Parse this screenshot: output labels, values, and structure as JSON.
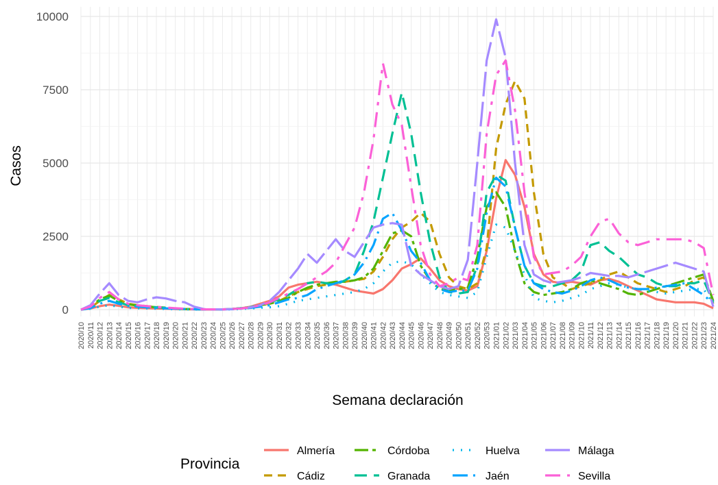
{
  "chart_data": {
    "type": "line",
    "xlabel": "Semana declaración",
    "ylabel": "Casos",
    "ylim": [
      0,
      10000
    ],
    "yticks": [
      0,
      2500,
      5000,
      7500,
      10000
    ],
    "grid": true,
    "legend": {
      "title": "Provincia",
      "position": "bottom"
    },
    "x": [
      "2020/10",
      "2020/11",
      "2020/12",
      "2020/13",
      "2020/14",
      "2020/15",
      "2020/16",
      "2020/17",
      "2020/18",
      "2020/19",
      "2020/20",
      "2020/21",
      "2020/22",
      "2020/23",
      "2020/24",
      "2020/25",
      "2020/26",
      "2020/27",
      "2020/28",
      "2020/29",
      "2020/30",
      "2020/31",
      "2020/32",
      "2020/33",
      "2020/34",
      "2020/35",
      "2020/36",
      "2020/37",
      "2020/38",
      "2020/39",
      "2020/40",
      "2020/41",
      "2020/42",
      "2020/43",
      "2020/44",
      "2020/45",
      "2020/46",
      "2020/47",
      "2020/48",
      "2020/49",
      "2020/50",
      "2020/51",
      "2020/52",
      "2020/53",
      "2021/01",
      "2021/02",
      "2021/03",
      "2021/04",
      "2021/05",
      "2021/06",
      "2021/07",
      "2021/08",
      "2021/09",
      "2021/10",
      "2021/11",
      "2021/12",
      "2021/13",
      "2021/14",
      "2021/15",
      "2021/16",
      "2021/17",
      "2021/18",
      "2021/19",
      "2021/20",
      "2021/21",
      "2021/22",
      "2021/23",
      "2021/24"
    ],
    "series": [
      {
        "name": "Almería",
        "color": "#F8766D",
        "dash": "",
        "values": [
          0,
          40,
          120,
          170,
          130,
          80,
          60,
          50,
          40,
          30,
          20,
          15,
          10,
          10,
          10,
          10,
          20,
          50,
          100,
          200,
          300,
          450,
          750,
          850,
          900,
          950,
          900,
          850,
          750,
          650,
          600,
          550,
          700,
          1000,
          1400,
          1550,
          1750,
          1400,
          1000,
          800,
          700,
          650,
          800,
          2000,
          3800,
          5100,
          4600,
          3500,
          1900,
          1200,
          950,
          900,
          950,
          900,
          850,
          1000,
          1050,
          950,
          800,
          650,
          500,
          350,
          300,
          250,
          250,
          250,
          200,
          50
        ]
      },
      {
        "name": "Cádiz",
        "color": "#C49A00",
        "dash": "12,8",
        "values": [
          0,
          60,
          300,
          500,
          350,
          200,
          150,
          120,
          90,
          70,
          40,
          20,
          15,
          10,
          10,
          10,
          20,
          40,
          80,
          150,
          200,
          300,
          450,
          600,
          700,
          800,
          850,
          900,
          950,
          1000,
          1050,
          1300,
          1800,
          2400,
          2800,
          3000,
          3300,
          3000,
          1900,
          1100,
          800,
          700,
          900,
          2100,
          5500,
          7000,
          7800,
          7200,
          4000,
          1900,
          1100,
          900,
          700,
          800,
          900,
          1000,
          1200,
          1300,
          1100,
          900,
          800,
          700,
          600,
          700,
          800,
          1000,
          1100,
          200
        ]
      },
      {
        "name": "Córdoba",
        "color": "#53B400",
        "dash": "20,6,5,6",
        "values": [
          0,
          100,
          350,
          480,
          300,
          180,
          140,
          110,
          80,
          60,
          40,
          20,
          15,
          10,
          10,
          10,
          20,
          50,
          90,
          150,
          200,
          280,
          400,
          600,
          750,
          850,
          900,
          950,
          950,
          1000,
          1100,
          1400,
          2000,
          2600,
          2700,
          2500,
          1500,
          1000,
          700,
          650,
          700,
          750,
          1800,
          3500,
          4000,
          3500,
          2000,
          900,
          600,
          500,
          550,
          600,
          700,
          900,
          1000,
          900,
          800,
          700,
          550,
          500,
          600,
          700,
          800,
          900,
          1000,
          1100,
          1200,
          300
        ]
      },
      {
        "name": "Granada",
        "color": "#00C094",
        "dash": "18,10",
        "values": [
          0,
          80,
          300,
          400,
          250,
          150,
          120,
          100,
          80,
          60,
          40,
          20,
          15,
          10,
          10,
          10,
          20,
          50,
          90,
          150,
          250,
          350,
          500,
          700,
          900,
          950,
          900,
          850,
          1000,
          1200,
          2000,
          3000,
          4500,
          6000,
          7400,
          6000,
          4000,
          2300,
          1100,
          600,
          550,
          600,
          1500,
          4000,
          4600,
          4400,
          2800,
          1500,
          900,
          800,
          800,
          900,
          1000,
          1300,
          2200,
          2300,
          2000,
          1800,
          1500,
          1200,
          1100,
          900,
          800,
          800,
          900,
          900,
          1000,
          250
        ]
      },
      {
        "name": "Huelva",
        "color": "#00B6EB",
        "dash": "2,10",
        "values": [
          0,
          30,
          100,
          150,
          100,
          60,
          50,
          40,
          30,
          20,
          15,
          10,
          8,
          5,
          5,
          5,
          10,
          20,
          40,
          60,
          80,
          120,
          200,
          300,
          350,
          400,
          450,
          500,
          550,
          600,
          700,
          900,
          1300,
          1600,
          1650,
          1550,
          1200,
          900,
          600,
          500,
          450,
          400,
          600,
          1800,
          2900,
          2800,
          2000,
          1200,
          400,
          300,
          250,
          300,
          400,
          500,
          700,
          800,
          900,
          850,
          750,
          700,
          650,
          600,
          550,
          600,
          650,
          700,
          700,
          200
        ]
      },
      {
        "name": "Jaén",
        "color": "#06A4FF",
        "dash": "22,8,3,8",
        "values": [
          0,
          50,
          200,
          300,
          200,
          120,
          100,
          80,
          60,
          45,
          30,
          20,
          15,
          10,
          10,
          10,
          15,
          30,
          60,
          100,
          150,
          250,
          350,
          400,
          500,
          700,
          800,
          900,
          1000,
          1200,
          1600,
          2200,
          3100,
          3300,
          2700,
          2000,
          1600,
          1000,
          700,
          600,
          650,
          650,
          1400,
          3300,
          4500,
          4200,
          2800,
          1500,
          900,
          700,
          600,
          550,
          650,
          800,
          1000,
          1100,
          1000,
          850,
          750,
          700,
          700,
          750,
          800,
          850,
          900,
          700,
          500,
          200
        ]
      },
      {
        "name": "Málaga",
        "color": "#A58AFF",
        "dash": "36,8",
        "values": [
          0,
          150,
          550,
          900,
          500,
          300,
          250,
          350,
          420,
          380,
          300,
          250,
          100,
          20,
          10,
          10,
          20,
          40,
          80,
          150,
          300,
          600,
          1000,
          1400,
          1900,
          1600,
          2000,
          2400,
          2000,
          1800,
          2300,
          2800,
          2900,
          2950,
          2900,
          1500,
          1200,
          1000,
          800,
          700,
          800,
          1700,
          5000,
          8500,
          9900,
          8600,
          5000,
          2200,
          1200,
          1000,
          900,
          950,
          1000,
          1100,
          1250,
          1200,
          1150,
          1150,
          1100,
          1200,
          1300,
          1400,
          1500,
          1600,
          1500,
          1400,
          1300,
          100
        ]
      },
      {
        "name": "Sevilla",
        "color": "#FB61D7",
        "dash": "22,10,5,10",
        "values": [
          0,
          100,
          400,
          600,
          350,
          200,
          150,
          120,
          90,
          70,
          50,
          30,
          20,
          10,
          10,
          10,
          20,
          40,
          80,
          150,
          250,
          400,
          550,
          700,
          900,
          1100,
          1300,
          1600,
          2200,
          2800,
          4000,
          5800,
          8400,
          7000,
          6300,
          4200,
          2200,
          1200,
          800,
          900,
          1100,
          1000,
          2200,
          6000,
          8000,
          8500,
          6800,
          4000,
          1800,
          1200,
          1250,
          1300,
          1500,
          1800,
          2500,
          3000,
          3100,
          2600,
          2300,
          2200,
          2300,
          2400,
          2400,
          2400,
          2400,
          2300,
          2100,
          500
        ]
      }
    ]
  }
}
